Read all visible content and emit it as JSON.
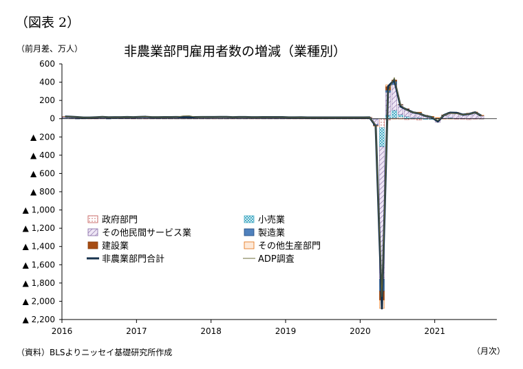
{
  "figure_label": "（図表 2）",
  "source_note": "（資料）BLSよりニッセイ基礎研究所作成",
  "chart_data": {
    "type": "bar",
    "stacked": true,
    "title": "非農業部門雇用者数の増減（業種別）",
    "ylabel": "（前月差、万人）",
    "xlabel": "（月次）",
    "ylim": [
      -2200,
      600
    ],
    "yticks": [
      600,
      400,
      200,
      0,
      -200,
      -400,
      -600,
      -800,
      -1000,
      -1200,
      -1400,
      -1600,
      -1800,
      -2000,
      -2200
    ],
    "ytick_labels": [
      "600",
      "400",
      "200",
      "0",
      "▲ 200",
      "▲ 400",
      "▲ 600",
      "▲ 800",
      "▲ 1,000",
      "▲ 1,200",
      "▲ 1,400",
      "▲ 1,600",
      "▲ 1,800",
      "▲ 2,000",
      "▲ 2,200"
    ],
    "year_labels": [
      "2016",
      "2017",
      "2018",
      "2019",
      "2020",
      "2021"
    ],
    "grid": false,
    "legend_position": "lower-left-inside",
    "first_month": "2016-01",
    "months": 68,
    "series": [
      {
        "name": "政府部門",
        "color": "#c0504d",
        "fill": "#fbeaea",
        "pattern": "dots-red",
        "values": [
          3,
          2,
          2,
          1,
          1,
          1,
          2,
          2,
          3,
          2,
          2,
          1,
          1,
          1,
          1,
          1,
          1,
          1,
          1,
          1,
          1,
          1,
          1,
          1,
          1,
          1,
          1,
          1,
          1,
          1,
          1,
          1,
          1,
          1,
          1,
          1,
          1,
          1,
          1,
          1,
          1,
          1,
          1,
          1,
          1,
          1,
          1,
          1,
          1,
          1,
          -2,
          -98,
          -15,
          10,
          20,
          -10,
          -5,
          -15,
          -5,
          -5,
          -20,
          1,
          5,
          -5,
          -5,
          -10,
          -5,
          -5
        ]
      },
      {
        "name": "小売業",
        "color": "#4bacc6",
        "fill": "#d3eef3",
        "pattern": "checks",
        "values": [
          3,
          3,
          2,
          1,
          2,
          2,
          2,
          1,
          2,
          2,
          2,
          2,
          1,
          2,
          1,
          1,
          1,
          1,
          1,
          1,
          1,
          1,
          1,
          1,
          0,
          1,
          1,
          0,
          1,
          1,
          0,
          0,
          1,
          1,
          1,
          1,
          0,
          0,
          0,
          0,
          0,
          0,
          0,
          0,
          0,
          0,
          0,
          0,
          0,
          1,
          -4,
          -210,
          40,
          84,
          25,
          24,
          12,
          11,
          -3,
          -4,
          5,
          4,
          7,
          4,
          3,
          2,
          2,
          1
        ]
      },
      {
        "name": "その他民間サービス業",
        "color": "#8064a2",
        "fill": "#e3d7ef",
        "pattern": "hatch",
        "values": [
          14,
          13,
          12,
          8,
          8,
          10,
          13,
          11,
          9,
          10,
          12,
          11,
          15,
          14,
          12,
          12,
          12,
          12,
          13,
          12,
          11,
          12,
          12,
          12,
          12,
          12,
          12,
          12,
          12,
          12,
          12,
          12,
          12,
          12,
          12,
          12,
          11,
          11,
          12,
          11,
          11,
          11,
          11,
          11,
          11,
          11,
          11,
          11,
          11,
          12,
          -60,
          -1450,
          250,
          280,
          105,
          80,
          55,
          52,
          30,
          20,
          -20,
          30,
          50,
          55,
          40,
          55,
          65,
          30
        ]
      },
      {
        "name": "製造業",
        "color": "#1f497d",
        "fill": "#4f81bd",
        "pattern": "solid",
        "values": [
          1,
          0,
          -1,
          0,
          0,
          1,
          1,
          -1,
          0,
          0,
          1,
          0,
          1,
          2,
          1,
          1,
          1,
          1,
          1,
          1,
          2,
          2,
          2,
          2,
          2,
          2,
          2,
          2,
          2,
          2,
          1,
          1,
          1,
          1,
          1,
          1,
          0,
          0,
          0,
          0,
          0,
          0,
          0,
          0,
          0,
          0,
          0,
          0,
          0,
          0,
          -10,
          -130,
          22,
          35,
          3,
          3,
          4,
          5,
          3,
          3,
          3,
          2,
          5,
          6,
          3,
          2,
          4,
          5
        ]
      },
      {
        "name": "建設業",
        "color": "#8a3f0f",
        "fill": "#a64b12",
        "pattern": "solid",
        "values": [
          2,
          2,
          2,
          1,
          1,
          1,
          1,
          1,
          1,
          1,
          1,
          1,
          2,
          2,
          1,
          1,
          1,
          1,
          1,
          1,
          1,
          1,
          2,
          2,
          2,
          2,
          2,
          1,
          1,
          1,
          1,
          1,
          1,
          1,
          1,
          1,
          1,
          1,
          1,
          1,
          1,
          1,
          1,
          1,
          1,
          1,
          1,
          1,
          1,
          1,
          -2,
          -100,
          40,
          15,
          3,
          2,
          2,
          3,
          3,
          1,
          2,
          5,
          2,
          3,
          2,
          1,
          1,
          1
        ]
      },
      {
        "name": "その他生産部門",
        "color": "#e46c0a",
        "fill": "#fde9d9",
        "pattern": "light",
        "values": [
          0,
          0,
          0,
          0,
          0,
          0,
          0,
          0,
          0,
          0,
          0,
          0,
          0,
          0,
          0,
          0,
          0,
          0,
          0,
          0,
          0,
          0,
          0,
          0,
          0,
          0,
          0,
          0,
          0,
          0,
          0,
          0,
          0,
          0,
          0,
          0,
          0,
          0,
          0,
          0,
          0,
          0,
          0,
          0,
          0,
          0,
          0,
          0,
          0,
          0,
          -1,
          -90,
          17,
          -1,
          -1,
          0,
          1,
          1,
          2,
          2,
          1,
          -1,
          -1,
          1,
          1,
          1,
          2,
          1
        ]
      }
    ],
    "lines": [
      {
        "name": "非農業部門合計",
        "color": "#17324d",
        "width": 3,
        "values": [
          23,
          20,
          17,
          12,
          12,
          15,
          19,
          15,
          16,
          16,
          18,
          16,
          19,
          20,
          16,
          16,
          17,
          17,
          18,
          17,
          16,
          17,
          18,
          18,
          18,
          19,
          19,
          16,
          18,
          18,
          16,
          16,
          17,
          17,
          17,
          17,
          14,
          14,
          15,
          13,
          13,
          13,
          13,
          13,
          13,
          13,
          13,
          13,
          13,
          14,
          -79,
          -2078,
          354,
          423,
          134,
          99,
          69,
          57,
          30,
          17,
          -31,
          40,
          66,
          64,
          44,
          51,
          69,
          33
        ]
      },
      {
        "name": "ADP調査",
        "color": "#6b6b3a",
        "width": 1,
        "values": [
          22,
          21,
          18,
          14,
          12,
          16,
          20,
          16,
          16,
          17,
          18,
          17,
          20,
          22,
          18,
          18,
          17,
          18,
          19,
          30,
          32,
          18,
          19,
          18,
          18,
          19,
          19,
          17,
          18,
          18,
          16,
          16,
          17,
          17,
          17,
          17,
          15,
          14,
          15,
          13,
          13,
          13,
          13,
          13,
          13,
          13,
          13,
          13,
          13,
          14,
          -70,
          -1950,
          300,
          450,
          150,
          95,
          70,
          60,
          30,
          20,
          -20,
          40,
          60,
          55,
          45,
          52,
          66,
          35
        ]
      }
    ]
  }
}
